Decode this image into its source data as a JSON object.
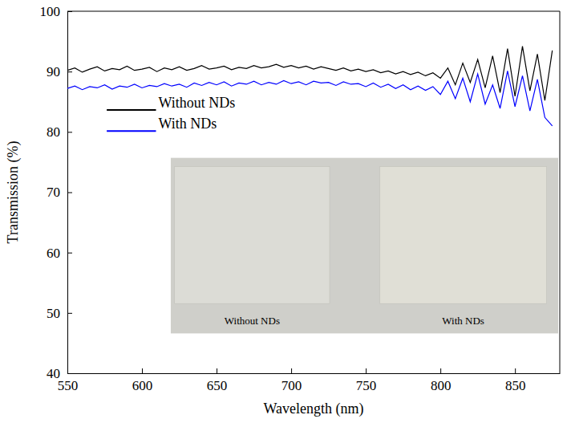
{
  "chart_data": {
    "type": "line",
    "xlabel": "Wavelength (nm)",
    "ylabel": "Transmission (%)",
    "x": [
      550,
      555,
      560,
      565,
      570,
      575,
      580,
      585,
      590,
      595,
      600,
      605,
      610,
      615,
      620,
      625,
      630,
      635,
      640,
      645,
      650,
      655,
      660,
      665,
      670,
      675,
      680,
      685,
      690,
      695,
      700,
      705,
      710,
      715,
      720,
      725,
      730,
      735,
      740,
      745,
      750,
      755,
      760,
      765,
      770,
      775,
      780,
      785,
      790,
      795,
      800,
      805,
      810,
      815,
      820,
      825,
      830,
      835,
      840,
      845,
      850,
      855,
      860,
      865,
      870,
      875
    ],
    "series": [
      {
        "name": "Without NDs",
        "color": "#000000",
        "values": [
          90.2,
          90.6,
          89.9,
          90.4,
          90.8,
          90.1,
          90.5,
          90.3,
          90.9,
          90.2,
          90.4,
          90.7,
          90.0,
          90.6,
          90.3,
          90.8,
          90.2,
          90.5,
          91.0,
          90.4,
          90.6,
          90.9,
          90.3,
          90.7,
          90.5,
          91.0,
          90.6,
          90.8,
          91.2,
          90.7,
          91.0,
          90.6,
          90.9,
          90.4,
          90.8,
          90.5,
          90.2,
          90.6,
          90.1,
          90.4,
          90.0,
          90.3,
          89.8,
          90.1,
          89.6,
          90.0,
          89.5,
          89.9,
          89.3,
          89.8,
          88.9,
          90.6,
          87.8,
          91.4,
          88.2,
          92.0,
          87.3,
          92.6,
          86.5,
          93.8,
          85.9,
          94.2,
          86.8,
          92.9,
          85.2,
          93.5
        ]
      },
      {
        "name": "With NDs",
        "color": "#0000ff",
        "values": [
          87.2,
          87.6,
          87.0,
          87.5,
          87.3,
          87.8,
          87.1,
          87.6,
          87.4,
          87.9,
          87.3,
          87.7,
          87.5,
          88.0,
          87.6,
          87.9,
          87.4,
          88.1,
          87.7,
          88.2,
          87.8,
          88.3,
          87.6,
          88.1,
          87.9,
          88.4,
          87.8,
          88.2,
          87.9,
          88.5,
          88.0,
          88.3,
          87.8,
          88.4,
          88.1,
          88.2,
          87.7,
          88.3,
          87.9,
          88.0,
          87.5,
          88.1,
          87.4,
          87.9,
          87.2,
          87.8,
          87.0,
          87.6,
          86.9,
          87.5,
          86.2,
          88.4,
          85.5,
          88.9,
          85.0,
          89.6,
          84.6,
          87.8,
          83.9,
          90.1,
          84.2,
          89.3,
          83.5,
          88.7,
          82.4,
          81.0
        ]
      }
    ],
    "xlim": [
      550,
      880
    ],
    "ylim": [
      40,
      100
    ],
    "xticks": [
      550,
      600,
      650,
      700,
      750,
      800,
      850
    ],
    "yticks": [
      40,
      50,
      60,
      70,
      80,
      90,
      100
    ],
    "legend": "upper left",
    "annotations": [
      "Without NDs",
      "With NDs"
    ]
  }
}
